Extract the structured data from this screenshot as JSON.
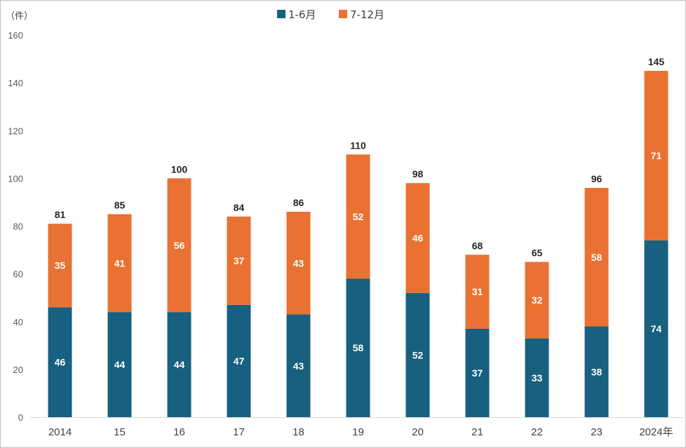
{
  "chart_data": {
    "type": "bar",
    "stacked": true,
    "unit_label": "（件）",
    "categories": [
      "2014",
      "15",
      "16",
      "17",
      "18",
      "19",
      "20",
      "21",
      "22",
      "23",
      "2024年"
    ],
    "series": [
      {
        "name": "1-6月",
        "color": "#17607f",
        "values": [
          46,
          44,
          44,
          47,
          43,
          58,
          52,
          37,
          33,
          38,
          74
        ]
      },
      {
        "name": "7-12月",
        "color": "#e97132",
        "values": [
          35,
          41,
          56,
          37,
          43,
          52,
          46,
          31,
          32,
          58,
          71
        ]
      }
    ],
    "totals": [
      81,
      85,
      100,
      84,
      86,
      110,
      98,
      68,
      65,
      96,
      145
    ],
    "yticks": [
      0,
      20,
      40,
      60,
      80,
      100,
      120,
      140,
      160
    ],
    "ylim": [
      0,
      160
    ],
    "legend_position": "top-center",
    "grid": false
  }
}
